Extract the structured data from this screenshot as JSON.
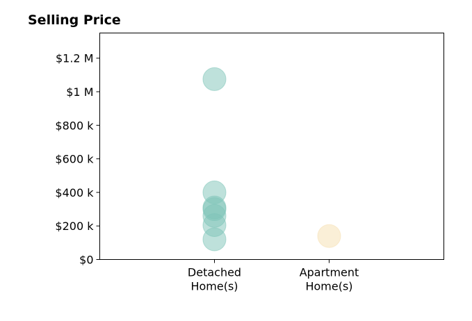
{
  "chart_data": {
    "type": "scatter",
    "title": "Selling Price",
    "xlabel": "",
    "ylabel": "",
    "categories": [
      "Detached\nHome(s)",
      "Apartment\nHome(s)"
    ],
    "series": [
      {
        "category": "Detached\nHome(s)",
        "color": "#7ec4b8",
        "values": [
          1075000,
          400000,
          310000,
          300000,
          260000,
          205000,
          120000
        ]
      },
      {
        "category": "Apartment\nHome(s)",
        "color": "#f5dfb0",
        "values": [
          140000
        ]
      }
    ],
    "ylim": [
      0,
      1350000
    ],
    "yticks": [
      0,
      200000,
      400000,
      600000,
      800000,
      1000000,
      1200000
    ],
    "ytick_labels": [
      "$0",
      "$200 k",
      "$400 k",
      "$600 k",
      "$800 k",
      "$1 M",
      "$1.2 M"
    ],
    "grid": false,
    "legend": "none"
  }
}
